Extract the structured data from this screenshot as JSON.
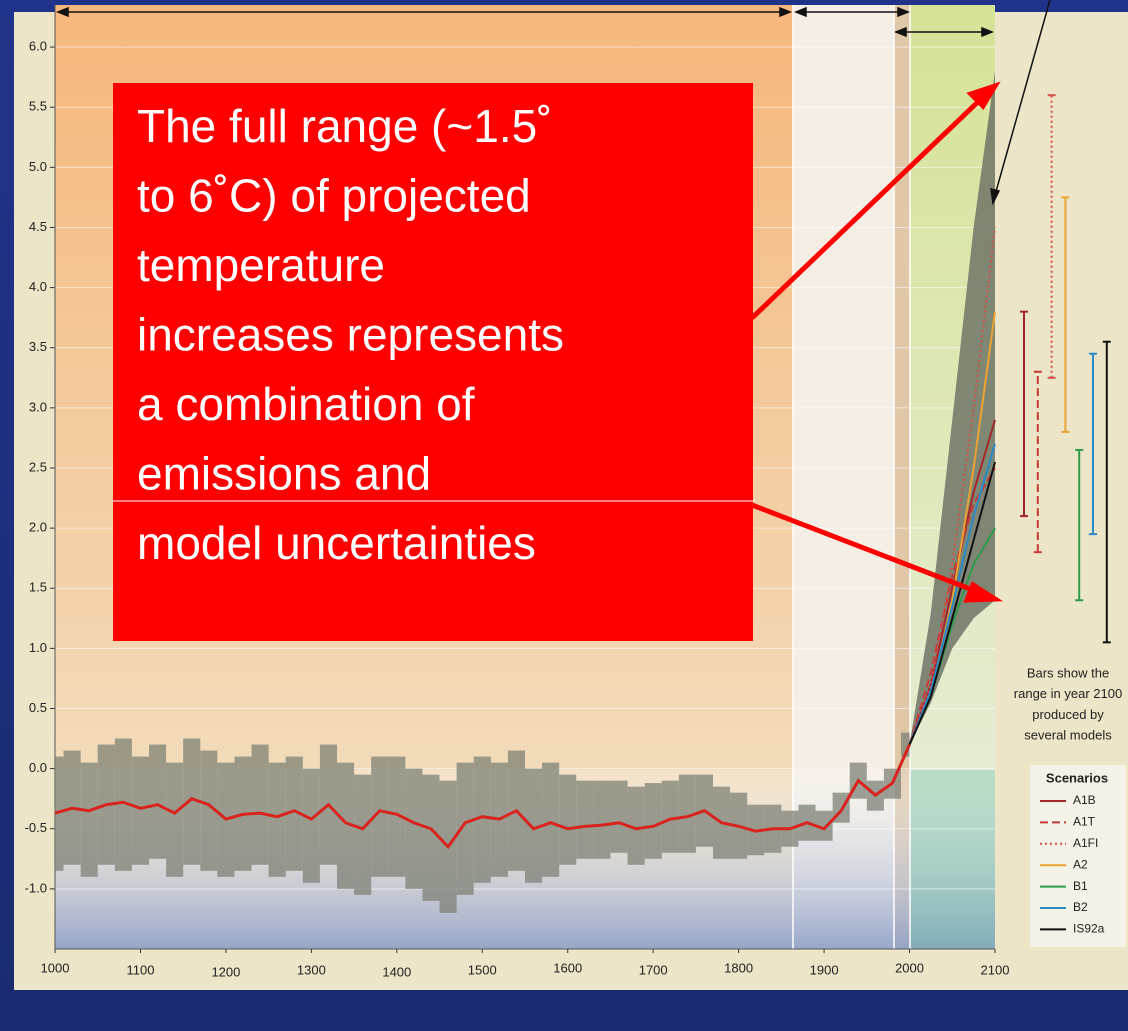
{
  "chart_data": {
    "type": "line",
    "xlim": [
      1000,
      2100
    ],
    "xticks": [
      1000,
      1100,
      1200,
      1300,
      1400,
      1500,
      1600,
      1700,
      1800,
      1900,
      2000,
      2100
    ],
    "ylim": [
      -1.5,
      6.35
    ],
    "yticks": [
      {
        "value": -1,
        "label": "-1.0"
      },
      -0.5,
      {
        "value": 0,
        "label": "0.0"
      },
      0.5,
      {
        "value": 1,
        "label": "1.0"
      },
      1.5,
      {
        "value": 2,
        "label": "2.0"
      },
      2.5,
      {
        "value": 3,
        "label": "3.0"
      },
      3.5,
      {
        "value": 4,
        "label": "4.0"
      },
      4.5,
      {
        "value": 5,
        "label": "5.0"
      },
      5.5,
      {
        "value": 6,
        "label": "6.0"
      }
    ],
    "grid": true,
    "history": {
      "color": "#d8231f",
      "x": [
        1000,
        1020,
        1040,
        1060,
        1080,
        1100,
        1120,
        1140,
        1160,
        1180,
        1200,
        1220,
        1240,
        1260,
        1280,
        1300,
        1320,
        1340,
        1360,
        1380,
        1400,
        1420,
        1440,
        1460,
        1480,
        1500,
        1520,
        1540,
        1560,
        1580,
        1600,
        1620,
        1640,
        1660,
        1680,
        1700,
        1720,
        1740,
        1760,
        1780,
        1800,
        1820,
        1840,
        1860,
        1880,
        1900,
        1920,
        1940,
        1960,
        1980,
        2000
      ],
      "values": [
        -0.37,
        -0.33,
        -0.35,
        -0.3,
        -0.28,
        -0.33,
        -0.3,
        -0.37,
        -0.25,
        -0.3,
        -0.42,
        -0.38,
        -0.37,
        -0.4,
        -0.35,
        -0.42,
        -0.3,
        -0.45,
        -0.5,
        -0.35,
        -0.38,
        -0.45,
        -0.5,
        -0.65,
        -0.45,
        -0.4,
        -0.42,
        -0.35,
        -0.5,
        -0.45,
        -0.5,
        -0.48,
        -0.47,
        -0.45,
        -0.5,
        -0.48,
        -0.42,
        -0.4,
        -0.35,
        -0.45,
        -0.48,
        -0.52,
        -0.5,
        -0.5,
        -0.45,
        -0.5,
        -0.35,
        -0.1,
        -0.22,
        -0.12,
        0.2
      ],
      "band_low": [
        -0.85,
        -0.8,
        -0.9,
        -0.8,
        -0.85,
        -0.8,
        -0.75,
        -0.9,
        -0.8,
        -0.85,
        -0.9,
        -0.85,
        -0.8,
        -0.9,
        -0.85,
        -0.95,
        -0.8,
        -1.0,
        -1.05,
        -0.9,
        -0.9,
        -1.0,
        -1.1,
        -1.2,
        -1.05,
        -0.95,
        -0.9,
        -0.85,
        -0.95,
        -0.9,
        -0.8,
        -0.75,
        -0.75,
        -0.7,
        -0.8,
        -0.75,
        -0.7,
        -0.7,
        -0.65,
        -0.75,
        -0.75,
        -0.72,
        -0.7,
        -0.65,
        -0.6,
        -0.6,
        -0.45,
        -0.25,
        -0.35,
        -0.25,
        0.1
      ],
      "band_high": [
        0.1,
        0.15,
        0.05,
        0.2,
        0.25,
        0.1,
        0.2,
        0.05,
        0.25,
        0.15,
        0.05,
        0.1,
        0.2,
        0.05,
        0.1,
        0.0,
        0.2,
        0.05,
        -0.05,
        0.1,
        0.1,
        0.0,
        -0.05,
        -0.1,
        0.05,
        0.1,
        0.05,
        0.15,
        0.0,
        0.05,
        -0.05,
        -0.1,
        -0.1,
        -0.1,
        -0.15,
        -0.12,
        -0.1,
        -0.05,
        -0.05,
        -0.15,
        -0.2,
        -0.3,
        -0.3,
        -0.35,
        -0.3,
        -0.35,
        -0.2,
        0.05,
        -0.1,
        0.0,
        0.3
      ]
    },
    "projection_x": [
      2000,
      2025,
      2050,
      2075,
      2100
    ],
    "envelope_low": [
      0.2,
      0.55,
      1.0,
      1.25,
      1.4
    ],
    "envelope_high": [
      0.2,
      1.3,
      2.9,
      4.5,
      5.8
    ],
    "envelope_color": "#6f7466",
    "series": [
      {
        "name": "A1B",
        "color": "#a3282a",
        "dash": "solid",
        "values": [
          0.2,
          0.7,
          1.5,
          2.3,
          2.9
        ],
        "range_low": 2.1,
        "range_high": 3.8
      },
      {
        "name": "A1T",
        "color": "#c83a36",
        "dash": "dashed",
        "values": [
          0.2,
          0.8,
          1.6,
          2.2,
          2.5
        ],
        "range_low": 1.8,
        "range_high": 3.3
      },
      {
        "name": "A1FI",
        "color": "#d5504a",
        "dash": "dotted",
        "values": [
          0.2,
          0.7,
          1.7,
          3.0,
          4.5
        ],
        "range_low": 3.25,
        "range_high": 5.6
      },
      {
        "name": "A2",
        "color": "#e9a332",
        "dash": "solid",
        "values": [
          0.2,
          0.6,
          1.4,
          2.5,
          3.8
        ],
        "range_low": 2.8,
        "range_high": 4.75
      },
      {
        "name": "B1",
        "color": "#2e9a4c",
        "dash": "solid",
        "values": [
          0.2,
          0.6,
          1.2,
          1.7,
          2.0
        ],
        "range_low": 1.4,
        "range_high": 2.65
      },
      {
        "name": "B2",
        "color": "#2b8ac4",
        "dash": "solid",
        "values": [
          0.2,
          0.65,
          1.35,
          2.1,
          2.7
        ],
        "range_low": 1.95,
        "range_high": 3.45
      },
      {
        "name": "IS92a",
        "color": "#111111",
        "dash": "solid",
        "values": [
          0.2,
          0.6,
          1.25,
          1.9,
          2.55
        ],
        "range_low": 1.05,
        "range_high": 3.55
      }
    ],
    "legend_title": "Scenarios",
    "bars_note": [
      "Bars show the",
      "range in year 2100",
      "produced by",
      "several models"
    ],
    "annotation": [
      "The full range (~1.5˚",
      "to 6˚C) of projected",
      "temperature",
      "increases represents",
      "a combination of",
      "emissions and",
      "model uncertainties"
    ]
  }
}
